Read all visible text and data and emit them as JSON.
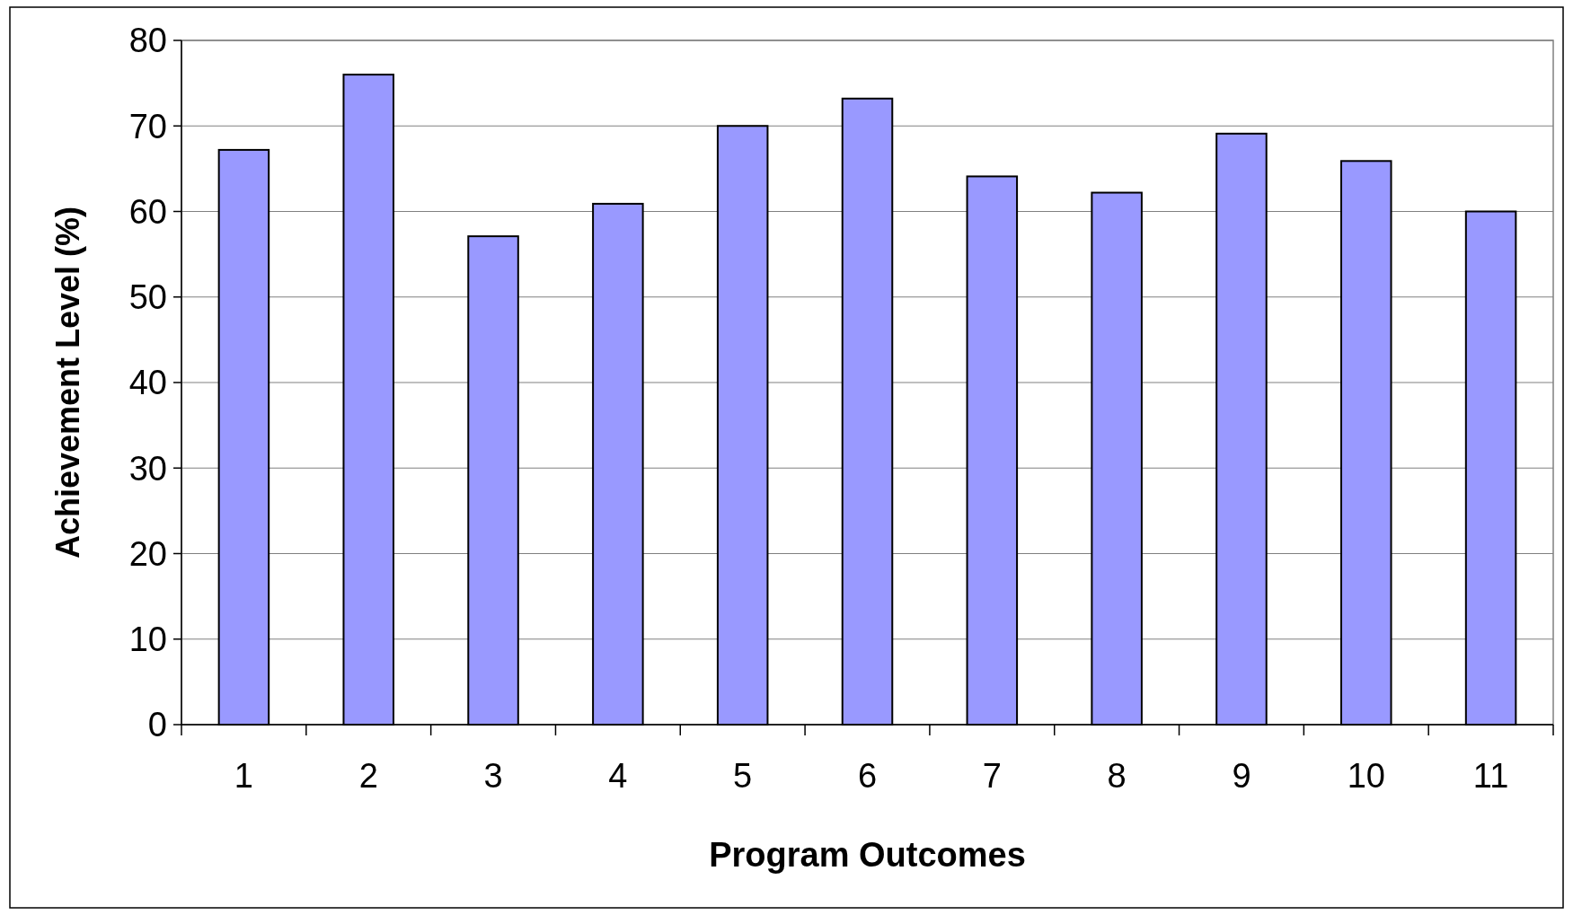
{
  "chart_data": {
    "type": "bar",
    "xlabel": "Program Outcomes",
    "ylabel": "Achievement Level (%)",
    "categories": [
      "1",
      "2",
      "3",
      "4",
      "5",
      "6",
      "7",
      "8",
      "9",
      "10",
      "11"
    ],
    "values": [
      67.2,
      76,
      57.1,
      60.9,
      70,
      73.2,
      64.1,
      62.2,
      69.1,
      65.9,
      60
    ],
    "color": "#9999ff",
    "ylim": [
      0,
      80
    ],
    "yticks": [
      0,
      10,
      20,
      30,
      40,
      50,
      60,
      70,
      80
    ],
    "grid": "y"
  }
}
